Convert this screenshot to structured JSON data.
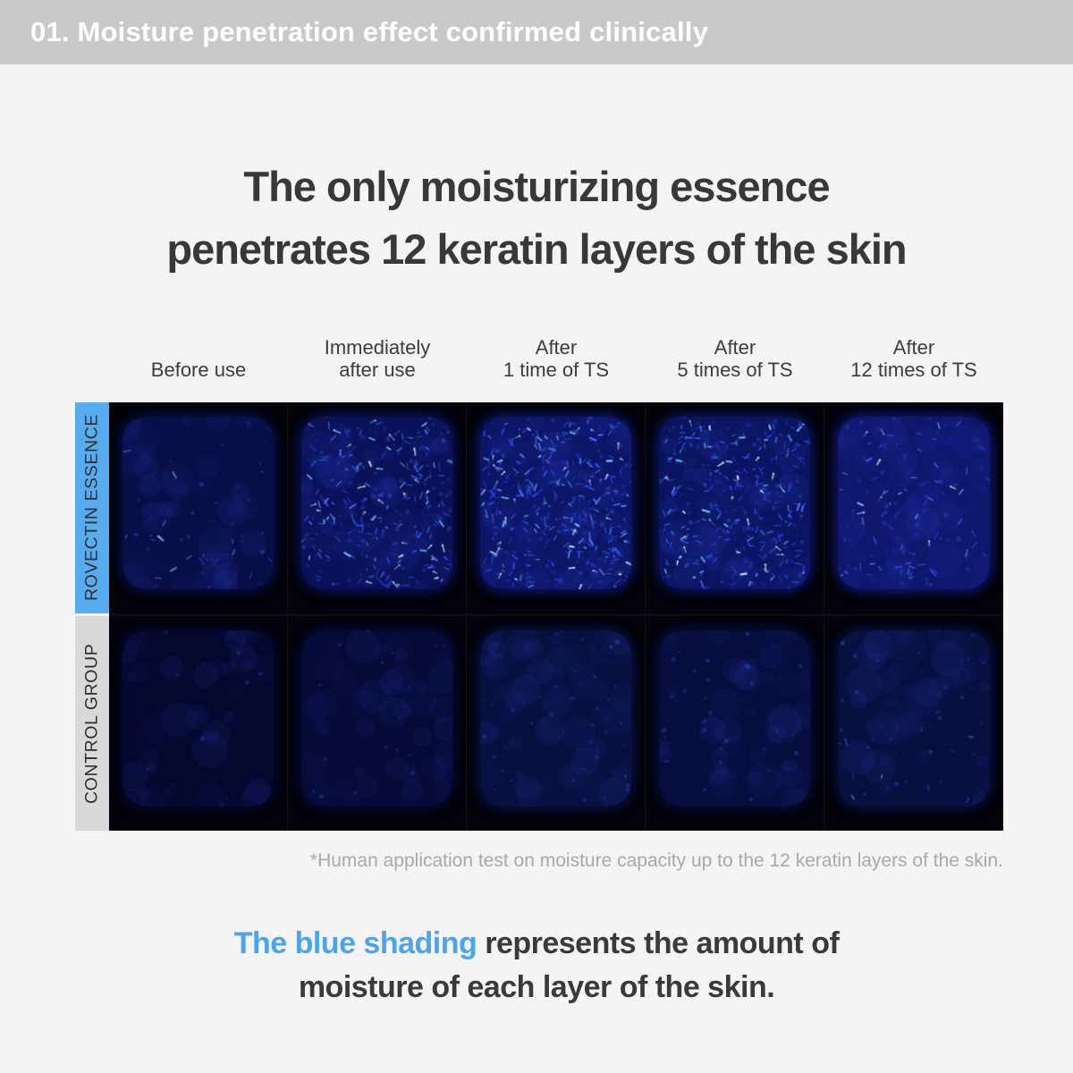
{
  "banner": {
    "title": "01. Moisture penetration effect confirmed clinically"
  },
  "heading": {
    "line1": "The only moisturizing essence",
    "line2": "penetrates 12 keratin layers of the skin"
  },
  "columns": [
    {
      "line1": "",
      "line2": "Before use"
    },
    {
      "line1": "Immediately",
      "line2": "after use"
    },
    {
      "line1": "After",
      "line2": "1 time of TS"
    },
    {
      "line1": "After",
      "line2": "5 times of TS"
    },
    {
      "line1": "After",
      "line2": "12 times of TS"
    }
  ],
  "grid": {
    "rows": [
      {
        "label": "ROVECTIN ESSENCE",
        "label_bg": "#58abee",
        "cells": [
          {
            "base": "#080e46",
            "mottle": 45,
            "dim": 25,
            "sparks": 26,
            "bright": 0.75,
            "bias": true
          },
          {
            "base": "#0a1158",
            "mottle": 70,
            "dim": 90,
            "sparks": 230,
            "bright": 0.9,
            "bias": false
          },
          {
            "base": "#0c1566",
            "mottle": 70,
            "dim": 90,
            "sparks": 330,
            "bright": 1.0,
            "bias": false
          },
          {
            "base": "#0b1460",
            "mottle": 70,
            "dim": 90,
            "sparks": 270,
            "bright": 0.95,
            "bias": false
          },
          {
            "base": "#0f176d",
            "mottle": 60,
            "dim": 60,
            "sparks": 85,
            "bright": 0.95,
            "bias": false
          }
        ]
      },
      {
        "label": "CONTROL GROUP",
        "label_bg": "#d9d9d9",
        "cells": [
          {
            "base": "#05082e",
            "mottle": 35,
            "dim": 10,
            "sparks": 0,
            "bright": 0.3,
            "bias": false
          },
          {
            "base": "#060a36",
            "mottle": 40,
            "dim": 16,
            "sparks": 2,
            "bright": 0.4,
            "bias": false
          },
          {
            "base": "#081040",
            "mottle": 55,
            "dim": 40,
            "sparks": 4,
            "bright": 0.45,
            "bias": true
          },
          {
            "base": "#070d3c",
            "mottle": 50,
            "dim": 30,
            "sparks": 4,
            "bright": 0.45,
            "bias": true
          },
          {
            "base": "#081040",
            "mottle": 50,
            "dim": 30,
            "sparks": 12,
            "bright": 0.7,
            "bias": true
          }
        ]
      }
    ]
  },
  "caption": "*Human application test on moisture capacity up to the 12 keratin layers of the skin.",
  "footer": {
    "highlight": "The blue shading",
    "rest_line1": " represents the amount of",
    "line2": "moisture of each layer of the skin."
  },
  "colors": {
    "accent_blue": "#4da3ee",
    "rovectin_label_bg": "#58abee",
    "control_label_bg": "#d9d9d9",
    "banner_bg": "#c9c9c9",
    "page_bg": "#f4f4f5"
  }
}
